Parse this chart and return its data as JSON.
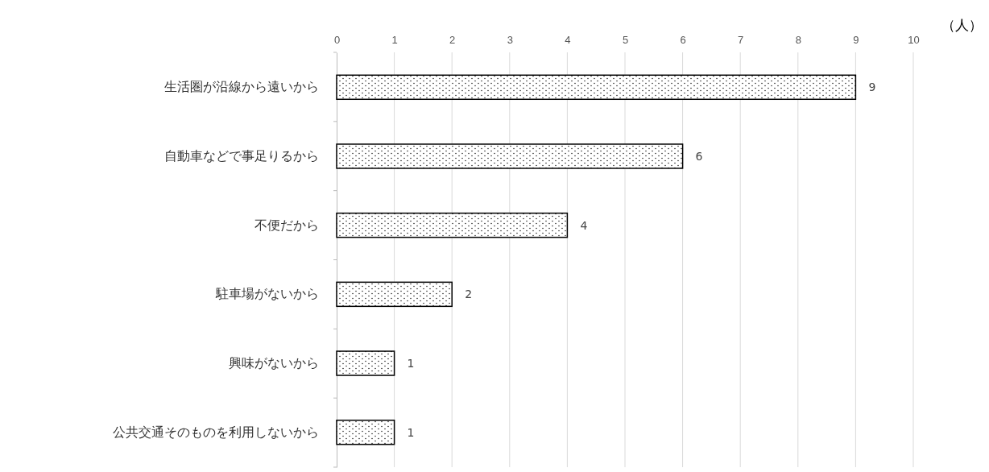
{
  "chart_data": {
    "type": "bar",
    "orientation": "horizontal",
    "xlabel": "（人）",
    "categories": [
      "生活圏が沿線から遠いから",
      "自動車などで事足りるから",
      "不便だから",
      "駐車場がないから",
      "興味がないから",
      "公共交通そのものを利用しないから"
    ],
    "values": [
      9,
      6,
      4,
      2,
      1,
      1
    ],
    "color": "#000000",
    "xlim": [
      0,
      10
    ],
    "xticks": [
      0,
      1,
      2,
      3,
      4,
      5,
      6,
      7,
      8,
      9,
      10
    ],
    "grid": "x",
    "data_labels": true
  }
}
